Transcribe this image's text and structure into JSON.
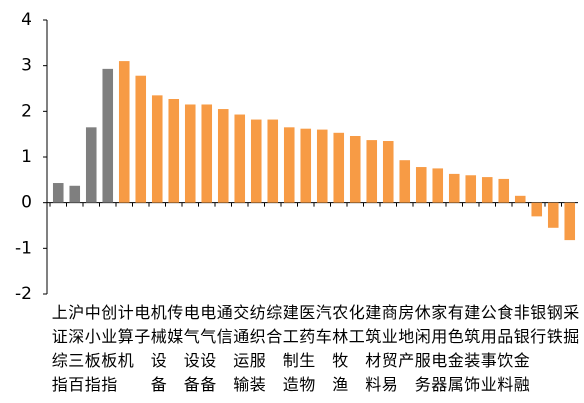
{
  "chart_data": {
    "type": "bar",
    "categories": [
      "上证综指",
      "沪深三百",
      "中小板指",
      "创业板指",
      "计算机",
      "电子",
      "机械设备",
      "传媒",
      "电气设备",
      "电气设备",
      "通信",
      "交通运输",
      "纺织服装",
      "综合",
      "建工制造",
      "医药生物",
      "汽车",
      "农林牧渔",
      "化工",
      "建筑材料",
      "商业贸易",
      "房地产",
      "休闲服务",
      "家用电器",
      "有色金属",
      "建筑装饰",
      "公用事业",
      "食品饮料",
      "非银金融",
      "银行",
      "钢铁",
      "采掘"
    ],
    "values": [
      0.43,
      0.37,
      1.65,
      2.93,
      3.1,
      2.78,
      2.35,
      2.27,
      2.15,
      2.15,
      2.05,
      1.93,
      1.82,
      1.82,
      1.65,
      1.62,
      1.6,
      1.53,
      1.46,
      1.37,
      1.35,
      0.93,
      0.78,
      0.75,
      0.63,
      0.6,
      0.56,
      0.52,
      0.15,
      -0.3,
      -0.55,
      -0.82
    ],
    "colors": [
      "#7f7f7f",
      "#7f7f7f",
      "#7f7f7f",
      "#7f7f7f",
      "#f79b45",
      "#f79b45",
      "#f79b45",
      "#f79b45",
      "#f79b45",
      "#f79b45",
      "#f79b45",
      "#f79b45",
      "#f79b45",
      "#f79b45",
      "#f79b45",
      "#f79b45",
      "#f79b45",
      "#f79b45",
      "#f79b45",
      "#f79b45",
      "#f79b45",
      "#f79b45",
      "#f79b45",
      "#f79b45",
      "#f79b45",
      "#f79b45",
      "#f79b45",
      "#f79b45",
      "#f79b45",
      "#f79b45",
      "#f79b45",
      "#f79b45"
    ],
    "ylim": [
      -2,
      4
    ],
    "yticks": [
      -2,
      -1,
      0,
      1,
      2,
      3,
      4
    ],
    "grid": false
  }
}
